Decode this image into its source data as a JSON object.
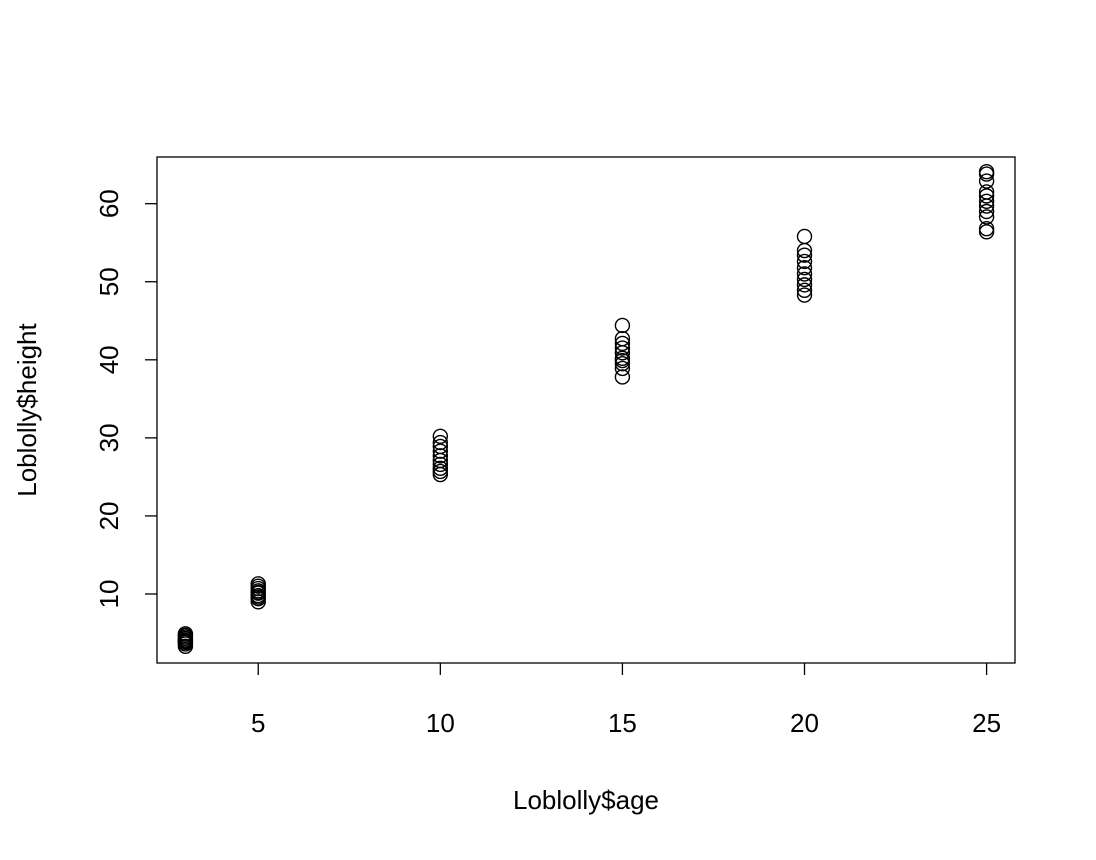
{
  "chart_data": {
    "type": "scatter",
    "title": "",
    "xlabel": "Loblolly$age",
    "ylabel": "Loblolly$height",
    "xlim": [
      2.22,
      25.78
    ],
    "ylim": [
      1.16,
      65.98
    ],
    "xticks": [
      5,
      10,
      15,
      20,
      25
    ],
    "yticks": [
      10,
      20,
      30,
      40,
      50,
      60
    ],
    "grid": false,
    "legend": "none",
    "point_color": "#000000",
    "series": [
      {
        "points": [
          [
            3,
            3.3
          ],
          [
            3,
            3.6
          ],
          [
            3,
            3.9
          ],
          [
            3,
            4.1
          ],
          [
            3,
            4.3
          ],
          [
            3,
            4.5
          ],
          [
            3,
            4.7
          ],
          [
            3,
            4.9
          ],
          [
            3,
            4.0
          ],
          [
            3,
            3.8
          ],
          [
            5,
            9.0
          ],
          [
            5,
            9.4
          ],
          [
            5,
            9.8
          ],
          [
            5,
            10.1
          ],
          [
            5,
            10.4
          ],
          [
            5,
            10.7
          ],
          [
            5,
            11.0
          ],
          [
            5,
            11.3
          ],
          [
            5,
            10.2
          ],
          [
            5,
            9.6
          ],
          [
            10,
            25.3
          ],
          [
            10,
            25.7
          ],
          [
            10,
            26.1
          ],
          [
            10,
            26.6
          ],
          [
            10,
            27.1
          ],
          [
            10,
            27.7
          ],
          [
            10,
            28.3
          ],
          [
            10,
            28.9
          ],
          [
            10,
            29.4
          ],
          [
            10,
            30.2
          ],
          [
            15,
            37.8
          ],
          [
            15,
            38.9
          ],
          [
            15,
            39.5
          ],
          [
            15,
            40.2
          ],
          [
            15,
            40.9
          ],
          [
            15,
            41.5
          ],
          [
            15,
            42.1
          ],
          [
            15,
            42.7
          ],
          [
            15,
            44.4
          ],
          [
            15,
            39.9
          ],
          [
            20,
            48.3
          ],
          [
            20,
            48.9
          ],
          [
            20,
            49.6
          ],
          [
            20,
            50.3
          ],
          [
            20,
            51.0
          ],
          [
            20,
            51.8
          ],
          [
            20,
            52.6
          ],
          [
            20,
            53.4
          ],
          [
            20,
            54.0
          ],
          [
            20,
            55.8
          ],
          [
            25,
            56.4
          ],
          [
            25,
            56.8
          ],
          [
            25,
            58.3
          ],
          [
            25,
            59.0
          ],
          [
            25,
            59.7
          ],
          [
            25,
            60.3
          ],
          [
            25,
            61.0
          ],
          [
            25,
            61.5
          ],
          [
            25,
            62.9
          ],
          [
            25,
            63.8
          ],
          [
            25,
            64.1
          ]
        ]
      }
    ]
  }
}
